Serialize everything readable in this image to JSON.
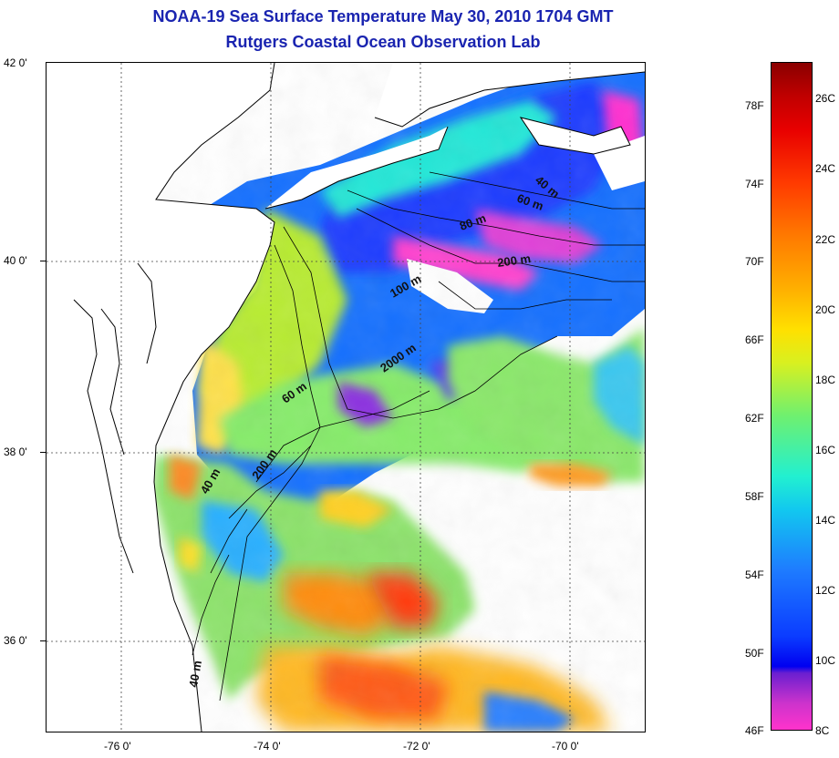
{
  "title": "NOAA-19 Sea Surface Temperature May 30, 2010 1704 GMT",
  "subtitle": "Rutgers Coastal Ocean Observation Lab",
  "map": {
    "latitude_labels": [
      "42 0'",
      "40 0'",
      "38 0'",
      "36 0'"
    ],
    "longitude_labels": [
      "-76 0'",
      "-74 0'",
      "-72 0'",
      "-70 0'"
    ],
    "lat_range": [
      35,
      42
    ],
    "lon_range": [
      -77,
      -69
    ],
    "grid": "dotted",
    "depth_contour_labels": [
      "40 m",
      "60 m",
      "80 m",
      "200 m",
      "100 m",
      "2000 m",
      "60 m",
      "200 m",
      "40 m",
      "40 m"
    ]
  },
  "colorbar": {
    "fahrenheit_labels": [
      "78F",
      "74F",
      "70F",
      "66F",
      "62F",
      "58F",
      "54F",
      "50F",
      "46F"
    ],
    "celsius_labels": [
      "26C",
      "24C",
      "22C",
      "20C",
      "18C",
      "16C",
      "14C",
      "12C",
      "10C",
      "8C"
    ],
    "range_c": [
      8,
      27
    ]
  },
  "colors": {
    "title": "#1a24b0",
    "land": "#ffffff",
    "coastline": "#000000",
    "cold": "#ff33cc",
    "cool": "#0b3cff",
    "mid": "#22f0d0",
    "warm": "#ffe000",
    "hot": "#e80000"
  }
}
